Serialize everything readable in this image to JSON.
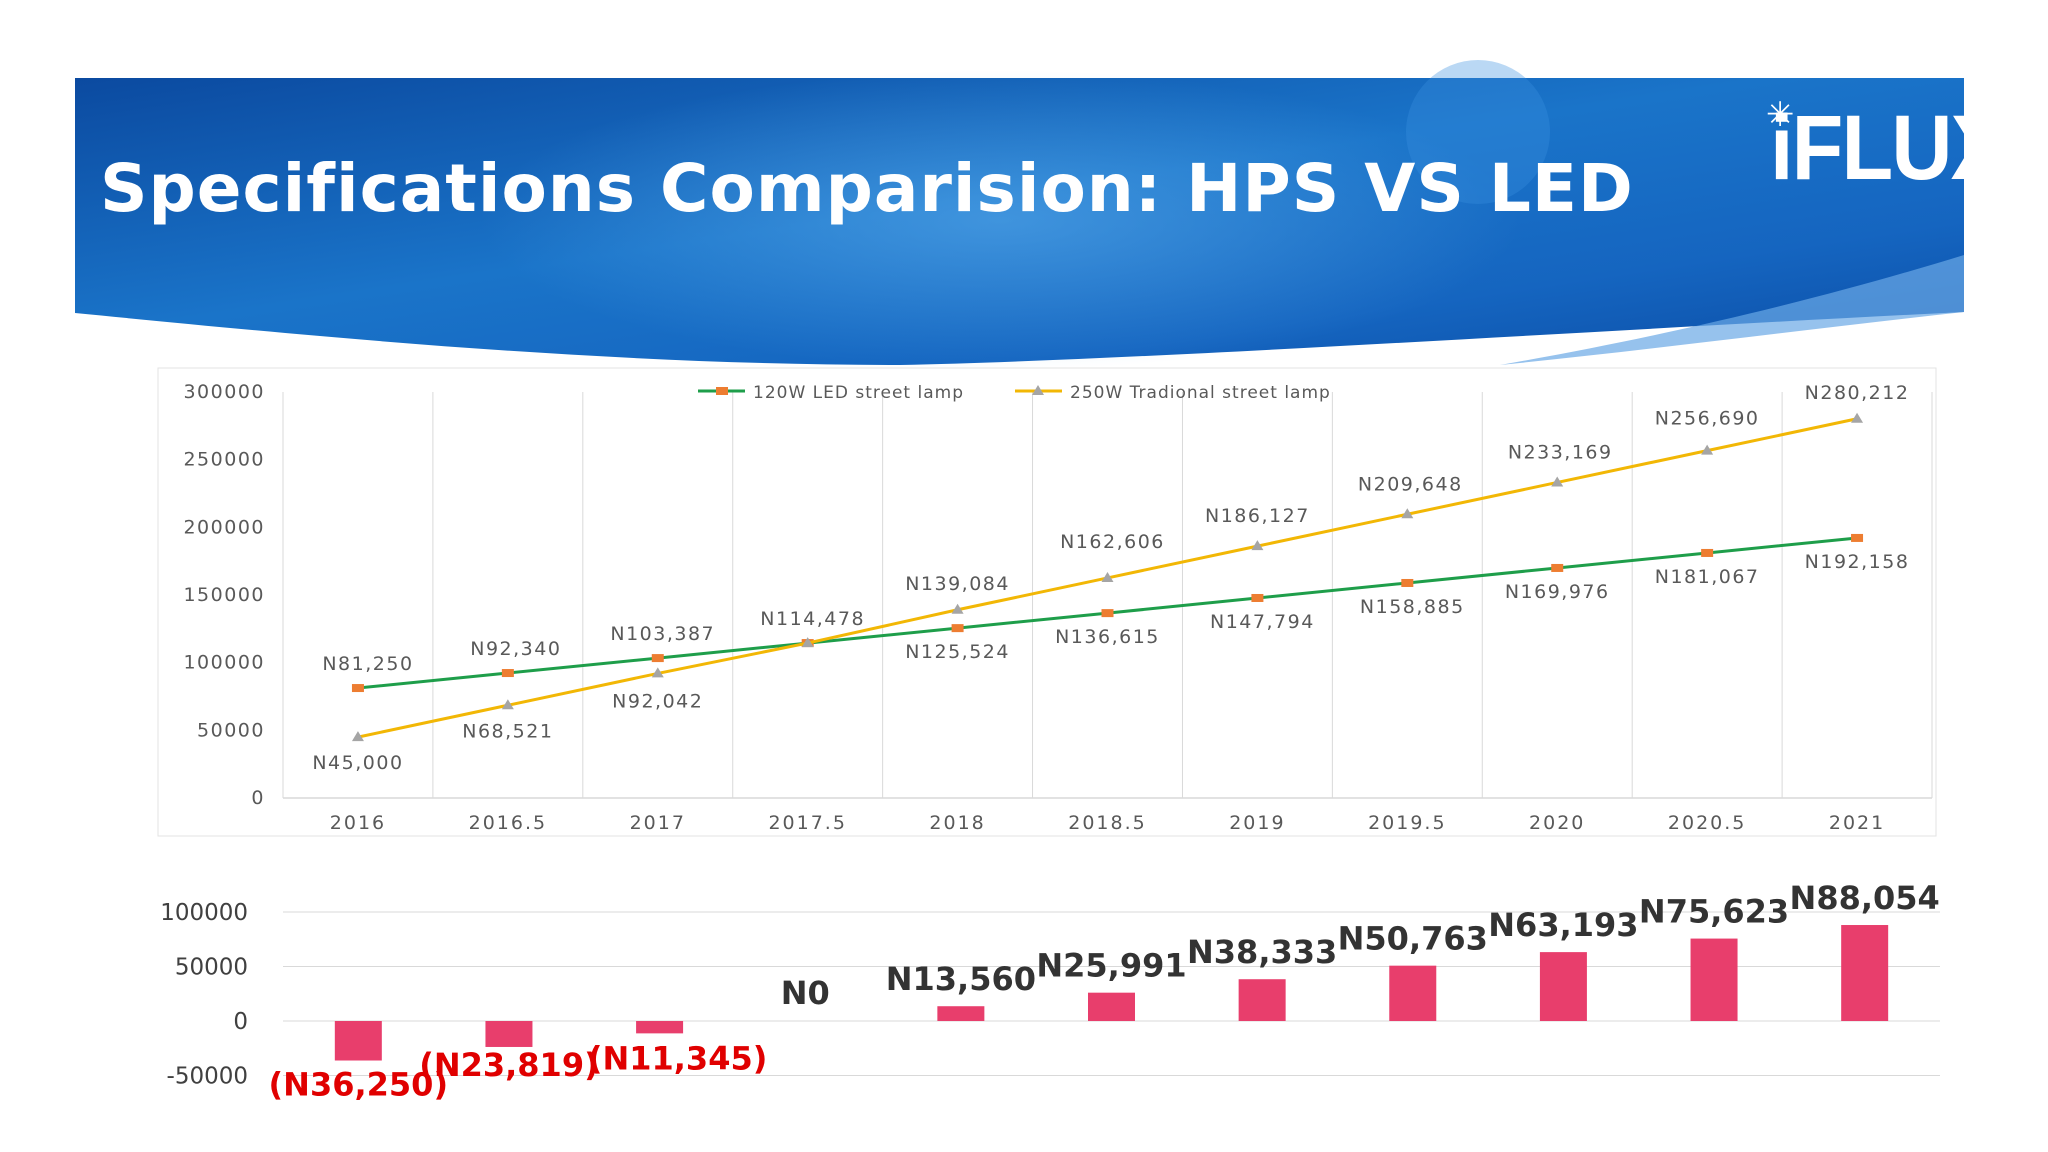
{
  "slide": {
    "title": "Specifications Comparision: HPS VS LED",
    "logo": {
      "text": "iFLUX",
      "icon": "star-burst-icon"
    },
    "colors": {
      "banner_dark": "#0a4fa6",
      "banner_light": "#2f8fd8",
      "accent": "#ffffff"
    }
  },
  "chart_data": [
    {
      "type": "line",
      "x": [
        "2016",
        "2016.5",
        "2017",
        "2017.5",
        "2018",
        "2018.5",
        "2019",
        "2019.5",
        "2020",
        "2020.5",
        "2021"
      ],
      "ylim": [
        0,
        300000
      ],
      "yticks": [
        "0",
        "50000",
        "100000",
        "150000",
        "200000",
        "250000",
        "300000"
      ],
      "grid": "vertical",
      "legend_position": "top",
      "series": [
        {
          "name": "120W LED street lamp",
          "color": "#1e9e4a",
          "marker_color": "#ed7d31",
          "values": [
            81250,
            92340,
            103387,
            114478,
            125524,
            136615,
            147794,
            158885,
            169976,
            181067,
            192158
          ],
          "labels": [
            "N81,250",
            "N92,340",
            "N103,387",
            "N114,478",
            "N125,524",
            "N136,615",
            "N147,794",
            "N158,885",
            "N169,976",
            "N181,067",
            "N192,158"
          ]
        },
        {
          "name": "250W Tradional street lamp",
          "color": "#f2b705",
          "marker_color": "#a5a5a5",
          "values": [
            45000,
            68521,
            92042,
            114478,
            139084,
            162606,
            186127,
            209648,
            233169,
            256690,
            280212
          ],
          "labels": [
            "N45,000",
            "N68,521",
            "N92,042",
            "",
            "N139,084",
            "N162,606",
            "N186,127",
            "N209,648",
            "N233,169",
            "N256,690",
            "N280,212"
          ]
        }
      ]
    },
    {
      "type": "bar",
      "ylim": [
        -50000,
        100000
      ],
      "yticks": [
        "-50000",
        "0",
        "50000",
        "100000"
      ],
      "grid": "horizontal",
      "bar_color": "#e83e6c",
      "negative_label_color": "#e00000",
      "positive_label_color": "#333333",
      "values": [
        -36250,
        -23819,
        -11345,
        0,
        13560,
        25991,
        38333,
        50763,
        63193,
        75623,
        88054
      ],
      "labels": [
        "(N36,250)",
        "(N23,819)",
        "(N11,345)",
        "N0",
        "N13,560",
        "N25,991",
        "N38,333",
        "N50,763",
        "N63,193",
        "N75,623",
        "N88,054"
      ]
    }
  ]
}
